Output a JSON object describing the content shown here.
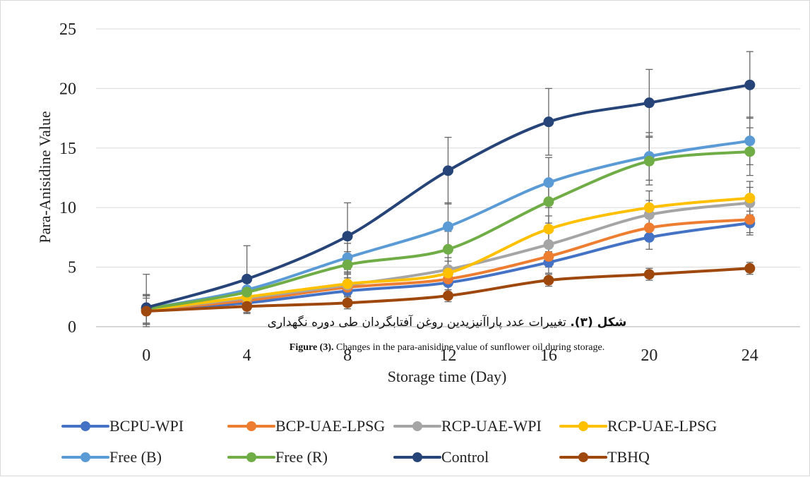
{
  "chart_data": {
    "type": "line",
    "title": "",
    "xlabel": "Storage time (Day)",
    "ylabel": "Para-Anisidine  Value",
    "x": [
      0,
      4,
      8,
      12,
      16,
      20,
      24
    ],
    "x_tick_labels": [
      "0",
      "4",
      "8",
      "12",
      "16",
      "20",
      "24"
    ],
    "y_tick_labels": [
      "0",
      "5",
      "10",
      "15",
      "20",
      "25"
    ],
    "ylim": [
      0,
      25
    ],
    "grid": "horizontal",
    "legend_position": "bottom",
    "error_bars": true,
    "series": [
      {
        "name": "BCPU-WPI",
        "color": "#4472C4",
        "values": [
          1.4,
          2.0,
          3.0,
          3.7,
          5.4,
          7.5,
          8.7
        ],
        "err": [
          1.2,
          0.8,
          0.8,
          0.9,
          0.9,
          1.0,
          1.0
        ]
      },
      {
        "name": "BCP-UAE-LPSG",
        "color": "#ED7D31",
        "values": [
          1.4,
          2.2,
          3.3,
          4.0,
          5.9,
          8.3,
          9.0
        ],
        "err": [
          1.2,
          0.8,
          0.8,
          0.9,
          0.9,
          1.0,
          1.1
        ]
      },
      {
        "name": "RCP-UAE-WPI",
        "color": "#A5A5A5",
        "values": [
          1.4,
          2.4,
          3.5,
          4.8,
          6.9,
          9.4,
          10.4
        ],
        "err": [
          1.2,
          0.8,
          0.9,
          1.0,
          1.0,
          1.2,
          1.3
        ]
      },
      {
        "name": "RCP-UAE-LPSG",
        "color": "#FFC000",
        "values": [
          1.4,
          2.5,
          3.6,
          4.5,
          8.2,
          10.0,
          10.8
        ],
        "err": [
          1.2,
          0.8,
          0.9,
          1.0,
          1.1,
          1.4,
          1.4
        ]
      },
      {
        "name": "Free (B)",
        "color": "#5B9BD5",
        "values": [
          1.5,
          3.1,
          5.8,
          8.4,
          12.1,
          14.3,
          15.6
        ],
        "err": [
          1.2,
          1.1,
          1.2,
          2.0,
          2.1,
          2.0,
          2.0
        ]
      },
      {
        "name": "Free (R)",
        "color": "#70AD47",
        "values": [
          1.5,
          2.9,
          5.2,
          6.5,
          10.5,
          13.9,
          14.7
        ],
        "err": [
          1.2,
          1.1,
          1.1,
          1.5,
          1.8,
          2.0,
          2.0
        ]
      },
      {
        "name": "Control",
        "color": "#264478",
        "values": [
          1.6,
          4.0,
          7.6,
          13.1,
          17.2,
          18.8,
          20.3
        ],
        "err": [
          2.8,
          2.8,
          2.8,
          2.8,
          2.8,
          2.8,
          2.8
        ]
      },
      {
        "name": "TBHQ",
        "color": "#9E480E",
        "values": [
          1.3,
          1.7,
          2.0,
          2.6,
          3.9,
          4.4,
          4.9
        ],
        "err": [
          1.1,
          0.6,
          0.5,
          0.5,
          0.5,
          0.5,
          0.5
        ]
      }
    ]
  },
  "caption": {
    "persian_bold": "شکل (۳).",
    "persian_text": "تغییرات عدد پاراآنیزیدین روغن آفتابگردان طی دوره نگهداری",
    "english_bold": "Figure (3).",
    "english_text": "Changes in the para-anisidine value of sunflower oil during storage."
  }
}
